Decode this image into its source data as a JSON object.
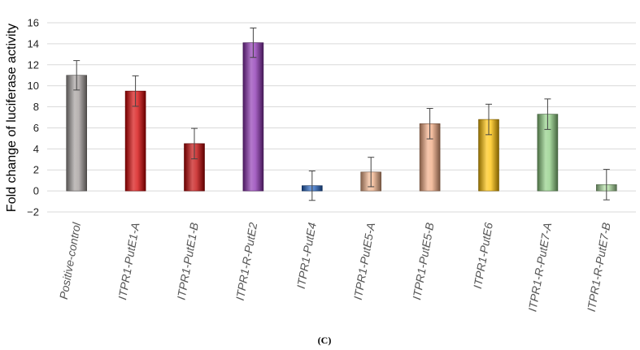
{
  "chart_data": {
    "type": "bar",
    "title": "",
    "xlabel": "",
    "ylabel": "Fold change of luciferase activity",
    "ylim": [
      -2,
      16
    ],
    "yticks": [
      -2,
      0,
      2,
      4,
      6,
      8,
      10,
      12,
      14,
      16
    ],
    "grid": true,
    "legend": "none",
    "categories": [
      "Positive-control",
      "ITPR1-PutE1-A",
      "ITPR1-PutE1-B",
      "ITPR1-R-PutE2",
      "ITPR1-PutE4",
      "ITPR1-PutE5-A",
      "ITPR1-PutE5-B",
      "ITPR1-PutE6",
      "ITPR1-R-PutE7-A",
      "ITPR1-R-PutE7-B"
    ],
    "values": [
      11.0,
      9.5,
      4.5,
      14.1,
      0.5,
      1.8,
      6.4,
      6.8,
      7.3,
      0.6
    ],
    "errors": [
      1.4,
      1.45,
      1.45,
      1.4,
      1.4,
      1.4,
      1.45,
      1.45,
      1.45,
      1.45
    ],
    "colors": [
      "#a09a98",
      "#d40000",
      "#c00000",
      "#8a2fb0",
      "#1f5fbf",
      "#f0b088",
      "#f0a880",
      "#ffc000",
      "#8ccc80",
      "#a8d89a"
    ],
    "annotation": "(C)"
  }
}
